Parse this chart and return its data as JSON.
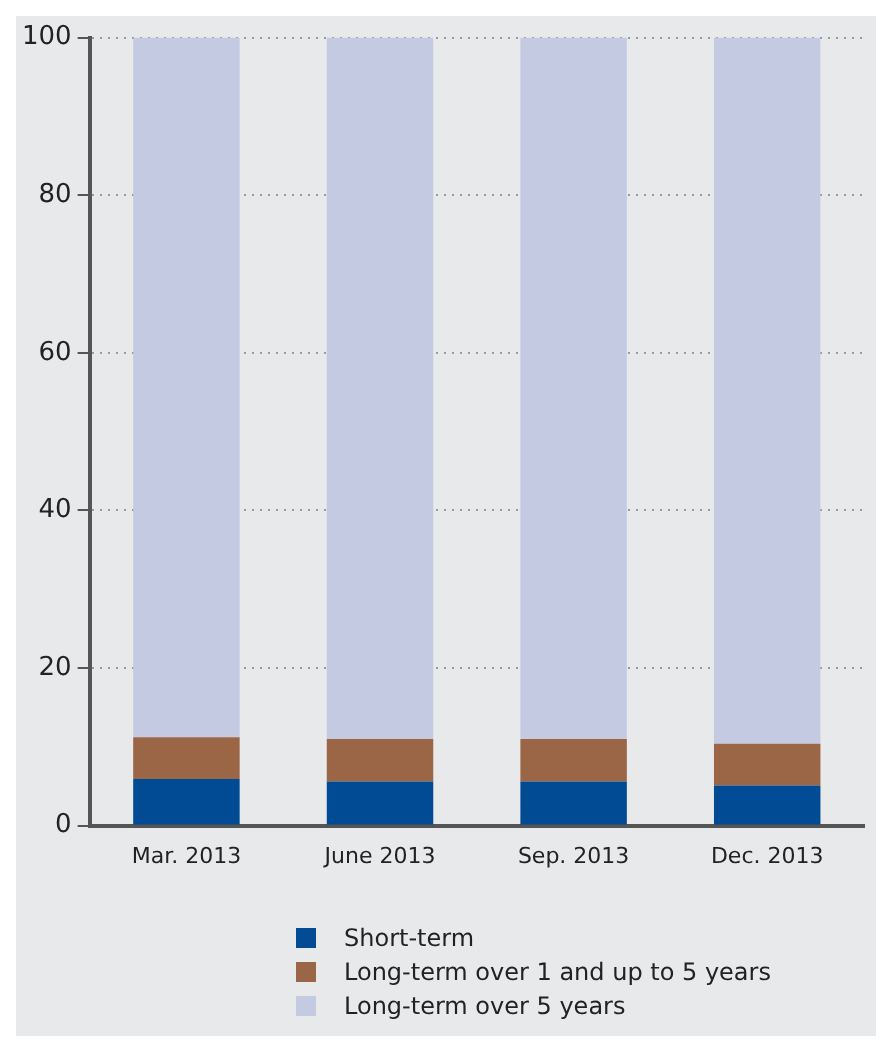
{
  "chart_data": {
    "type": "bar",
    "stacked": true,
    "categories": [
      "Mar. 2013",
      "June 2013",
      "Sep. 2013",
      "Dec. 2013"
    ],
    "series": [
      {
        "name": "Short-term",
        "color": "#004b93",
        "values": [
          5.9,
          5.6,
          5.6,
          5.1
        ]
      },
      {
        "name": "Long-term over 1 and up to 5 years",
        "color": "#9b6646",
        "values": [
          5.3,
          5.4,
          5.4,
          5.3
        ]
      },
      {
        "name": "Long-term over 5 years",
        "color": "#c5cae3",
        "values": [
          88.8,
          89.0,
          89.0,
          89.6
        ]
      }
    ],
    "ylim": [
      0,
      100
    ],
    "yticks": [
      0,
      20,
      40,
      60,
      80,
      100
    ],
    "grid": "y",
    "legend": "bottom"
  }
}
